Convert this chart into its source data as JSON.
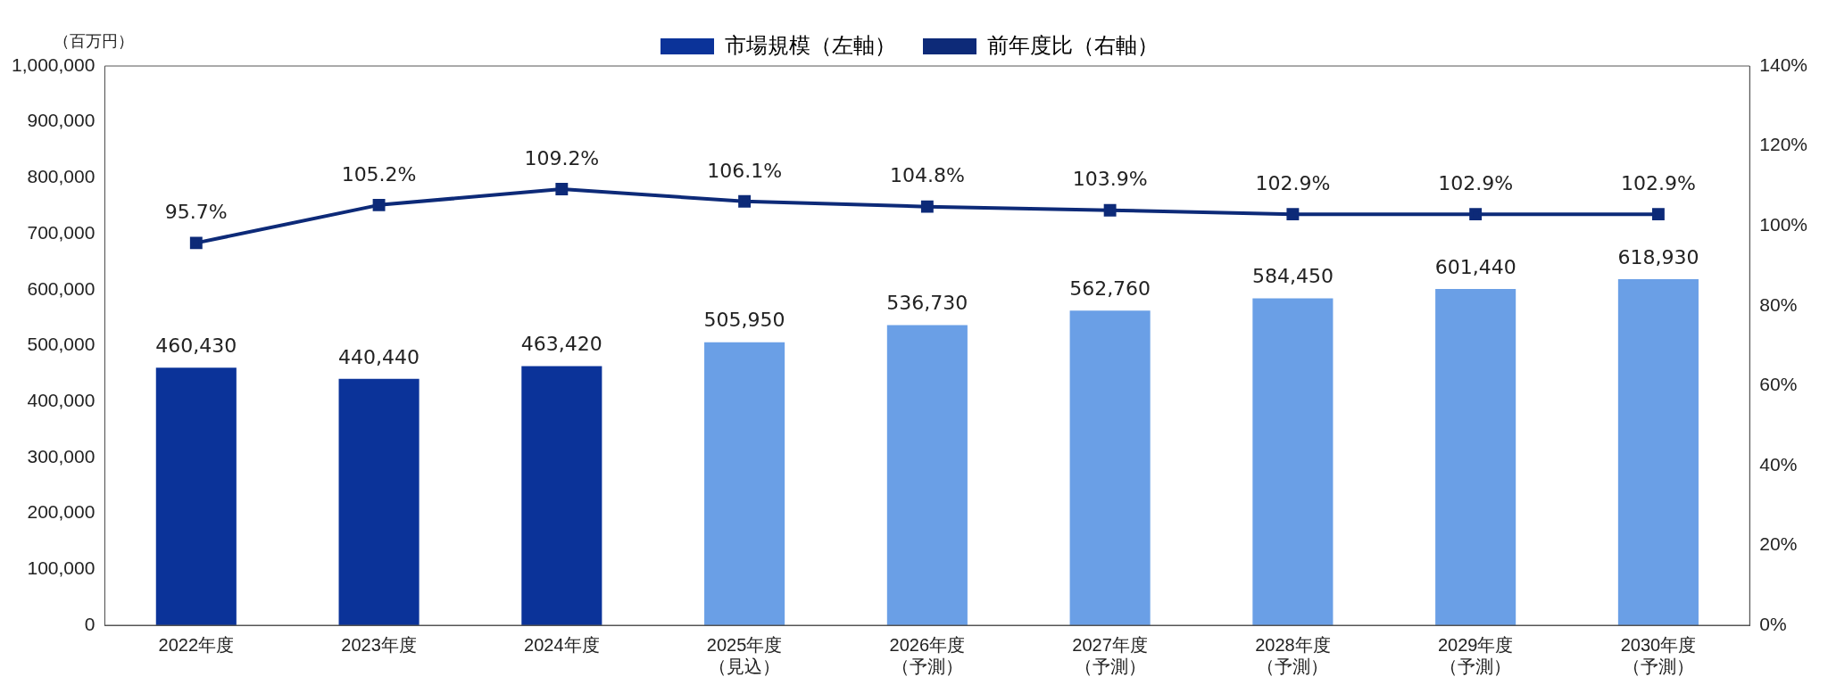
{
  "chart_data": {
    "type": "bar",
    "ylabel": "（百万円）",
    "categories": [
      "2022年度",
      "2023年度",
      "2024年度",
      "2025年度（見込）",
      "2026年度（予測）",
      "2027年度（予測）",
      "2028年度（予測）",
      "2029年度（予測）",
      "2030年度（予測）"
    ],
    "series": [
      {
        "name": "市場規模（左軸）",
        "color": "#0b3399",
        "colors": [
          "#0b3399",
          "#0b3399",
          "#0b3399",
          "#6a9fe6",
          "#6a9fe6",
          "#6a9fe6",
          "#6a9fe6",
          "#6a9fe6",
          "#6a9fe6"
        ],
        "values": [
          460430,
          440440,
          463420,
          505950,
          536730,
          562760,
          584450,
          601440,
          618930
        ],
        "value_labels": [
          "460,430",
          "440,440",
          "463,420",
          "505,950",
          "536,730",
          "562,760",
          "584,450",
          "601,440",
          "618,930"
        ]
      },
      {
        "name": "前年度比（右軸）",
        "type": "line",
        "axis": "y2",
        "color": "#0d2a78",
        "marker": "square",
        "values": [
          95.7,
          105.2,
          109.2,
          106.1,
          104.8,
          103.9,
          102.9,
          102.9,
          102.9
        ],
        "value_labels": [
          "95.7%",
          "105.2%",
          "109.2%",
          "106.1%",
          "104.8%",
          "103.9%",
          "102.9%",
          "102.9%",
          "102.9%"
        ]
      }
    ],
    "ylim": [
      0,
      1000000
    ],
    "yticks": [
      0,
      {
        "value": 100000,
        "label": "100,000"
      },
      {
        "value": 200000,
        "label": "200,000"
      },
      {
        "value": 300000,
        "label": "300,000"
      },
      {
        "value": 400000,
        "label": "400,000"
      },
      {
        "value": 500000,
        "label": "500,000"
      },
      {
        "value": 600000,
        "label": "600,000"
      },
      {
        "value": 700000,
        "label": "700,000"
      },
      {
        "value": 800000,
        "label": "800,000"
      },
      {
        "value": 900000,
        "label": "900,000"
      },
      {
        "value": 1000000,
        "label": "1,000,000"
      }
    ],
    "y2lim": [
      0,
      140
    ],
    "y2ticks": [
      {
        "value": 0,
        "label": "0%"
      },
      {
        "value": 20,
        "label": "20%"
      },
      {
        "value": 40,
        "label": "40%"
      },
      {
        "value": 60,
        "label": "60%"
      },
      {
        "value": 80,
        "label": "80%"
      },
      {
        "value": 100,
        "label": "100%"
      },
      {
        "value": 120,
        "label": "120%"
      },
      {
        "value": 140,
        "label": "140%"
      }
    ],
    "grid": false,
    "legend": "top"
  }
}
